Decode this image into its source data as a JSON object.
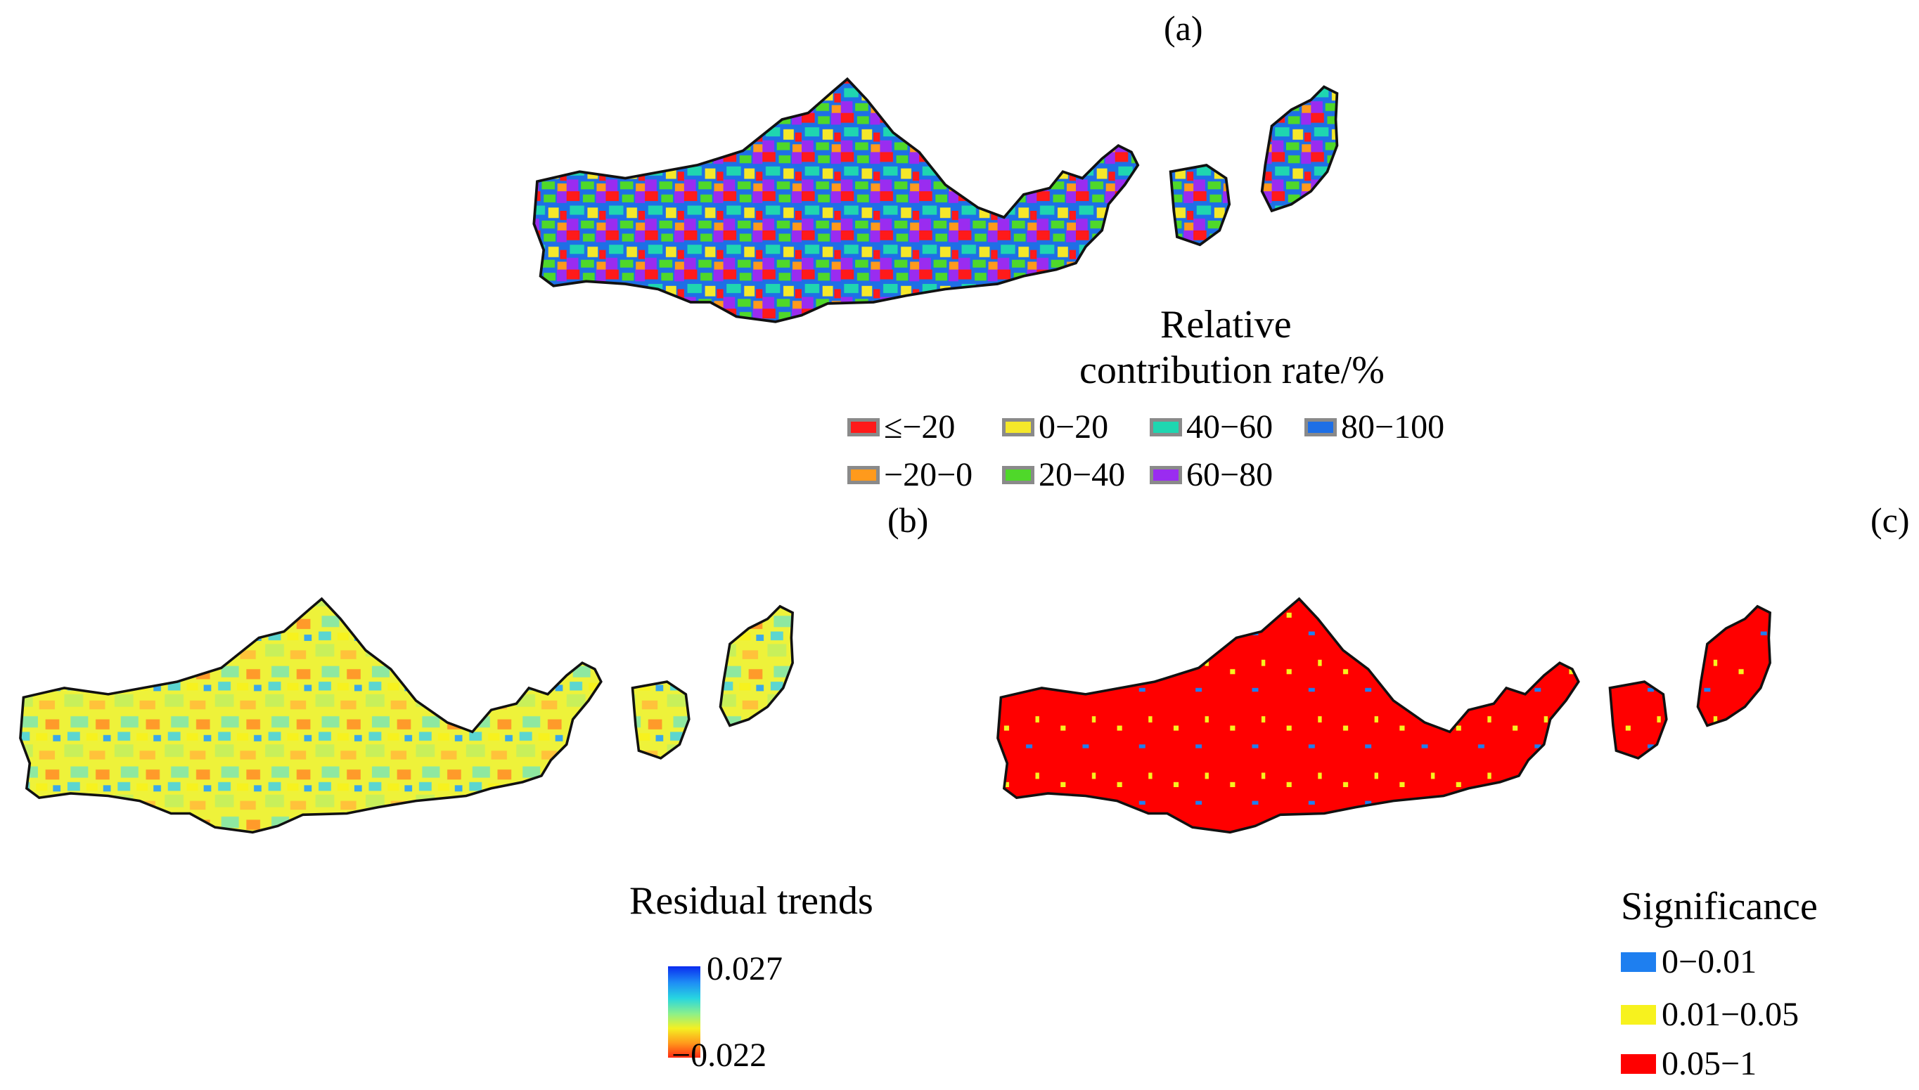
{
  "panels": {
    "a": {
      "label": "(a)",
      "legend_title": [
        "Relative",
        "contribution rate/%"
      ],
      "legend": [
        {
          "label": "≤−20",
          "color": "#ff1a1a"
        },
        {
          "label": "0−20",
          "color": "#f5e82a"
        },
        {
          "label": "40−60",
          "color": "#1fd6b0"
        },
        {
          "label": "80−100",
          "color": "#1e6fe6"
        },
        {
          "label": "−20−0",
          "color": "#ff9a1c"
        },
        {
          "label": "20−40",
          "color": "#4fd82a"
        },
        {
          "label": "60−80",
          "color": "#9a2cf0"
        }
      ]
    },
    "b": {
      "label": "(b)",
      "legend_title": "Residual trends",
      "colorbar_max": "0.027",
      "colorbar_min": "−0.022"
    },
    "c": {
      "label": "(c)",
      "legend_title": "Significance",
      "legend": [
        {
          "label": "0−0.01",
          "color": "#1e7ff0"
        },
        {
          "label": "0.01−0.05",
          "color": "#f7f21e"
        },
        {
          "label": "0.05−1",
          "color": "#ff0000"
        }
      ]
    }
  }
}
